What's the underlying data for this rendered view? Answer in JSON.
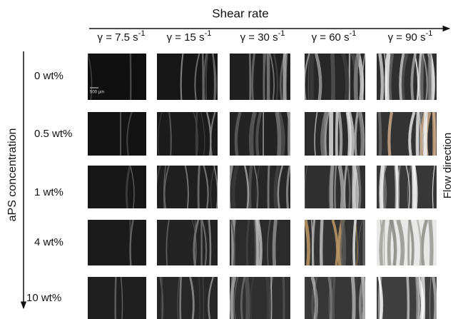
{
  "header": {
    "title": "Shear rate"
  },
  "columns": [
    {
      "label": "γ = 7.5 s",
      "exponent": "-1"
    },
    {
      "label": "γ = 15 s",
      "exponent": "-1"
    },
    {
      "label": "γ = 30 s",
      "exponent": "-1"
    },
    {
      "label": "γ = 60 s",
      "exponent": "-1"
    },
    {
      "label": "γ = 90 s",
      "exponent": "-1"
    }
  ],
  "rows": [
    "0 wt%",
    "0.5 wt%",
    "1 wt%",
    "4 wt%",
    "10 wt%"
  ],
  "left_axis": "aPS concentration",
  "right_axis": "Flow direction",
  "scale_bar": "500 µm"
}
